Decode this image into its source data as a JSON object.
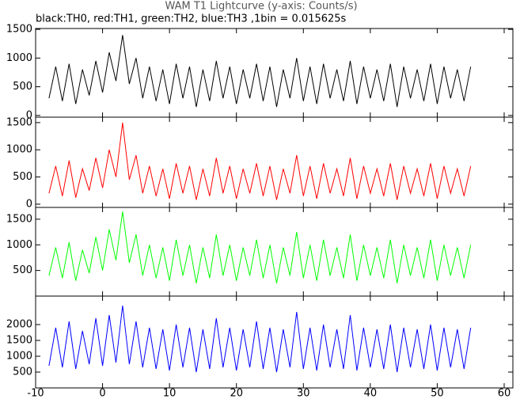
{
  "chart_data": [
    {
      "type": "line",
      "title": "WAM T1 Lightcurve (y-axis: Counts/s)",
      "subtitle": "black:TH0, red:TH1, green:TH2, blue:TH3 ,1bin = 0.015625s",
      "x": [
        -8,
        -7,
        -6,
        -5,
        -4,
        -3,
        -2,
        -1,
        0,
        1,
        2,
        3,
        4,
        5,
        6,
        7,
        8,
        9,
        10,
        11,
        12,
        13,
        14,
        15,
        16,
        17,
        18,
        19,
        20,
        21,
        22,
        23,
        24,
        25,
        26,
        27,
        28,
        29,
        30,
        31,
        32,
        33,
        34,
        35,
        36,
        37,
        38,
        39,
        40,
        41,
        42,
        43,
        44,
        45,
        46,
        47,
        48,
        49,
        50,
        51,
        52,
        53,
        54,
        55
      ],
      "series": [
        {
          "name": "TH0",
          "color": "#000000",
          "values": [
            300,
            850,
            250,
            900,
            200,
            800,
            350,
            950,
            400,
            1100,
            600,
            1400,
            550,
            1000,
            300,
            850,
            250,
            800,
            200,
            900,
            300,
            850,
            150,
            800,
            250,
            950,
            300,
            850,
            200,
            800,
            300,
            900,
            250,
            850,
            150,
            800,
            300,
            1000,
            250,
            850,
            200,
            900,
            300,
            800,
            250,
            950,
            200,
            850,
            300,
            800,
            250,
            900,
            150,
            850,
            300,
            800,
            250,
            900,
            200,
            850,
            300,
            800,
            250,
            850
          ]
        }
      ],
      "xlim": [
        -10,
        61.3
      ],
      "ylim": [
        -30,
        1515
      ],
      "yticks": [
        0,
        500,
        1000,
        1500
      ]
    },
    {
      "type": "line",
      "x": [
        -8,
        -7,
        -6,
        -5,
        -4,
        -3,
        -2,
        -1,
        0,
        1,
        2,
        3,
        4,
        5,
        6,
        7,
        8,
        9,
        10,
        11,
        12,
        13,
        14,
        15,
        16,
        17,
        18,
        19,
        20,
        21,
        22,
        23,
        24,
        25,
        26,
        27,
        28,
        29,
        30,
        31,
        32,
        33,
        34,
        35,
        36,
        37,
        38,
        39,
        40,
        41,
        42,
        43,
        44,
        45,
        46,
        47,
        48,
        49,
        50,
        51,
        52,
        53,
        54,
        55
      ],
      "series": [
        {
          "name": "TH1",
          "color": "#ff0000",
          "values": [
            200,
            700,
            150,
            800,
            120,
            650,
            250,
            850,
            300,
            1000,
            500,
            1500,
            450,
            900,
            200,
            700,
            150,
            650,
            100,
            750,
            200,
            700,
            80,
            650,
            150,
            850,
            200,
            700,
            100,
            650,
            200,
            750,
            150,
            700,
            80,
            650,
            200,
            900,
            150,
            700,
            100,
            750,
            200,
            650,
            150,
            850,
            100,
            700,
            200,
            650,
            150,
            750,
            80,
            700,
            200,
            650,
            150,
            750,
            100,
            700,
            200,
            650,
            150,
            700
          ]
        }
      ],
      "xlim": [
        -10,
        61.3
      ],
      "ylim": [
        -60,
        1600
      ],
      "yticks": [
        0,
        500,
        1000,
        1500
      ]
    },
    {
      "type": "line",
      "x": [
        -8,
        -7,
        -6,
        -5,
        -4,
        -3,
        -2,
        -1,
        0,
        1,
        2,
        3,
        4,
        5,
        6,
        7,
        8,
        9,
        10,
        11,
        12,
        13,
        14,
        15,
        16,
        17,
        18,
        19,
        20,
        21,
        22,
        23,
        24,
        25,
        26,
        27,
        28,
        29,
        30,
        31,
        32,
        33,
        34,
        35,
        36,
        37,
        38,
        39,
        40,
        41,
        42,
        43,
        44,
        45,
        46,
        47,
        48,
        49,
        50,
        51,
        52,
        53,
        54,
        55
      ],
      "series": [
        {
          "name": "TH2",
          "color": "#00ff00",
          "values": [
            400,
            950,
            350,
            1050,
            300,
            900,
            450,
            1150,
            500,
            1300,
            700,
            1650,
            650,
            1200,
            400,
            1000,
            350,
            950,
            300,
            1100,
            400,
            1000,
            250,
            950,
            350,
            1200,
            400,
            1000,
            300,
            950,
            400,
            1100,
            350,
            1000,
            250,
            950,
            400,
            1250,
            350,
            1000,
            300,
            1100,
            400,
            950,
            350,
            1200,
            300,
            1000,
            400,
            950,
            350,
            1100,
            250,
            1000,
            400,
            950,
            350,
            1100,
            300,
            1000,
            400,
            950,
            350,
            1000
          ]
        }
      ],
      "xlim": [
        -10,
        61.3
      ],
      "ylim": [
        0,
        1730
      ],
      "yticks": [
        500,
        1000,
        1500
      ]
    },
    {
      "type": "line",
      "x": [
        -8,
        -7,
        -6,
        -5,
        -4,
        -3,
        -2,
        -1,
        0,
        1,
        2,
        3,
        4,
        5,
        6,
        7,
        8,
        9,
        10,
        11,
        12,
        13,
        14,
        15,
        16,
        17,
        18,
        19,
        20,
        21,
        22,
        23,
        24,
        25,
        26,
        27,
        28,
        29,
        30,
        31,
        32,
        33,
        34,
        35,
        36,
        37,
        38,
        39,
        40,
        41,
        42,
        43,
        44,
        45,
        46,
        47,
        48,
        49,
        50,
        51,
        52,
        53,
        54,
        55
      ],
      "series": [
        {
          "name": "TH3",
          "color": "#0000ff",
          "values": [
            700,
            1900,
            650,
            2100,
            600,
            1800,
            750,
            2200,
            700,
            2300,
            800,
            2600,
            750,
            2100,
            650,
            1900,
            600,
            1850,
            550,
            2000,
            650,
            1900,
            500,
            1850,
            600,
            2200,
            650,
            1900,
            550,
            1850,
            650,
            2100,
            600,
            1900,
            500,
            1850,
            650,
            2400,
            600,
            1900,
            550,
            2000,
            650,
            1850,
            600,
            2300,
            550,
            1900,
            650,
            1850,
            600,
            2000,
            500,
            1900,
            650,
            1850,
            600,
            2000,
            550,
            1900,
            650,
            1850,
            600,
            1900
          ]
        }
      ],
      "xlim": [
        -10,
        61.3
      ],
      "ylim": [
        0,
        2900
      ],
      "yticks": [
        500,
        1000,
        1500,
        2000
      ],
      "xticks": [
        -10,
        0,
        10,
        20,
        30,
        40,
        50,
        60
      ]
    }
  ]
}
